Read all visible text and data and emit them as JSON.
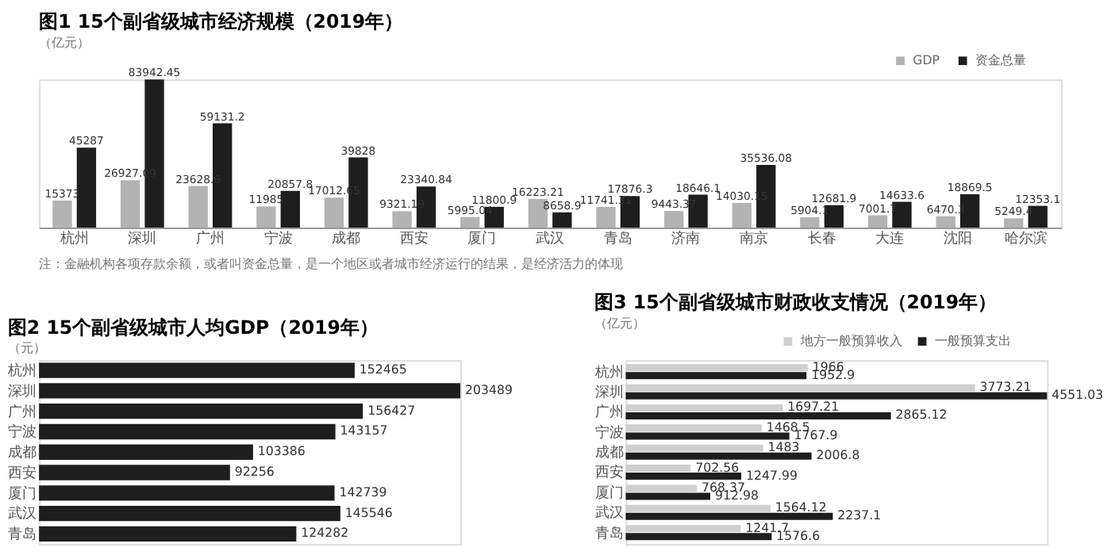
{
  "chart_data": [
    {
      "type": "bar",
      "title": "图1 15个副省级城市经济规模（2019年）",
      "ylabel": "（亿元）",
      "categories": [
        "杭州",
        "深圳",
        "广州",
        "宁波",
        "成都",
        "西安",
        "厦门",
        "武汉",
        "青岛",
        "济南",
        "南京",
        "长春",
        "大连",
        "沈阳",
        "哈尔滨"
      ],
      "series": [
        {
          "name": "GDP",
          "color": "#b3b3b3",
          "values": [
            15373,
            26927.09,
            23628.6,
            11985,
            17012.65,
            9321.19,
            5995.04,
            16223.21,
            11741.31,
            9443.37,
            14030.15,
            5904.1,
            7001.7,
            6470.3,
            5249.4
          ]
        },
        {
          "name": "资金总量",
          "color": "#1e1e1e",
          "values": [
            45287,
            83942.45,
            59131.2,
            20857.8,
            39828,
            23340.84,
            11800.9,
            8658.9,
            17876.3,
            18646.1,
            35536.08,
            12681.9,
            14633.6,
            18869.5,
            12353.1
          ]
        }
      ],
      "data_labels": true,
      "legend": "top right",
      "annotations": [
        "注：金融机构各项存款余额，或者叫资金总量，是一个地区或者城市经济运行的结果，是经济活力的体现"
      ]
    },
    {
      "type": "bar",
      "orientation": "horizontal",
      "title": "图2 15个副省级城市人均GDP（2019年）",
      "ylabel": "（元）",
      "categories": [
        "杭州",
        "深圳",
        "广州",
        "宁波",
        "成都",
        "西安",
        "厦门",
        "武汉",
        "青岛"
      ],
      "series": [
        {
          "color": "#1e1e1e",
          "values": [
            152465,
            203489,
            156427,
            143157,
            103386,
            92256,
            142739,
            145546,
            124282
          ]
        }
      ],
      "data_labels": true,
      "legend": false
    },
    {
      "type": "bar",
      "orientation": "horizontal",
      "title": "图3 15个副省级城市财政收支情况（2019年）",
      "ylabel": "（亿元）",
      "categories": [
        "杭州",
        "深圳",
        "广州",
        "宁波",
        "成都",
        "西安",
        "厦门",
        "武汉",
        "青岛"
      ],
      "series": [
        {
          "name": "地方一般预算收入",
          "color": "#cfcfcf",
          "values": [
            1966,
            3773.21,
            1697.21,
            1468.5,
            1483,
            702.56,
            768.37,
            1564.12,
            1241.7
          ]
        },
        {
          "name": "一般预算支出",
          "color": "#1e1e1e",
          "values": [
            1952.9,
            4551.03,
            2865.12,
            1767.9,
            2006.8,
            1247.99,
            912.98,
            2237.1,
            1576.6
          ]
        }
      ],
      "data_labels": true,
      "legend": "top right"
    }
  ]
}
